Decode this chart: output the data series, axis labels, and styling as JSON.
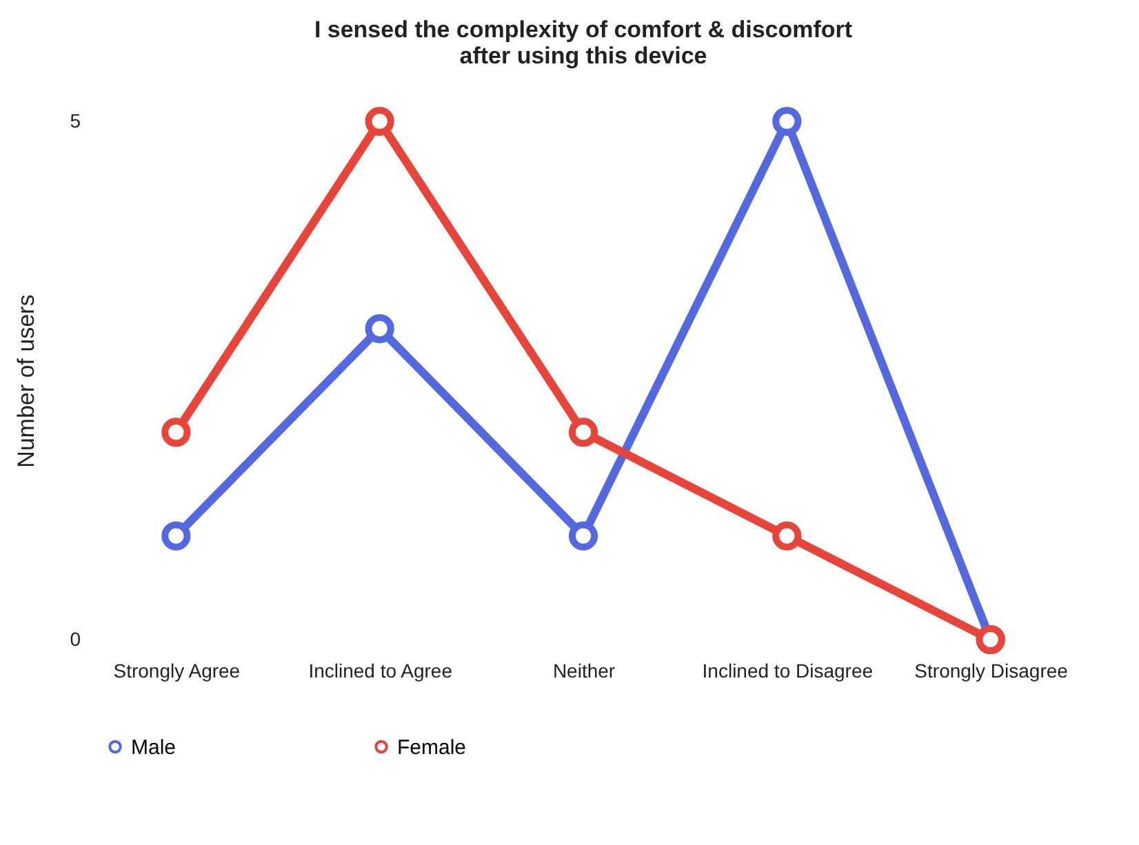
{
  "chart_data": {
    "type": "line",
    "title": "I sensed the complexity of comfort & discomfort\nafter using this device",
    "ylabel": "Number of users",
    "categories": [
      "Strongly Agree",
      "Inclined to Agree",
      "Neither",
      "Inclined to Disagree",
      "Strongly Disagree"
    ],
    "series": [
      {
        "name": "Male",
        "color": "#5468e0",
        "values": [
          1,
          3,
          1,
          5,
          0
        ]
      },
      {
        "name": "Female",
        "color": "#e8443a",
        "values": [
          2,
          5,
          2,
          1,
          0
        ]
      }
    ],
    "ylim": [
      0,
      5
    ],
    "yticks": [
      {
        "value": 0,
        "label": "0"
      },
      {
        "value": 5,
        "label": "5"
      }
    ],
    "grid": false,
    "legend": "bottom",
    "marker": "circle",
    "line_style": "solid"
  }
}
